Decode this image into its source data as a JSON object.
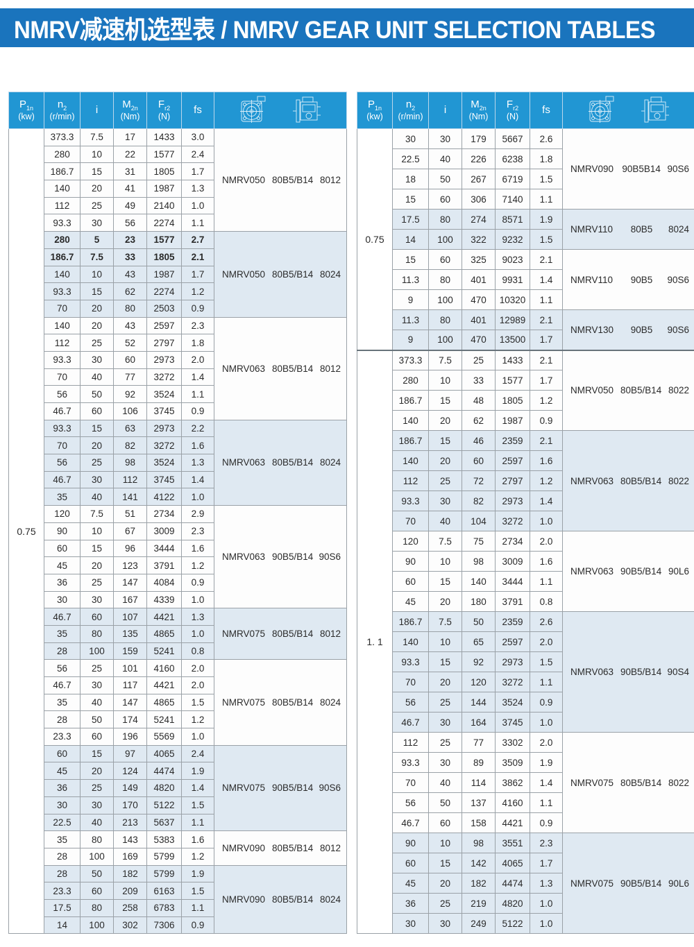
{
  "banner": {
    "title": "NMRV减速机选型表 / NMRV GEAR UNIT SELECTION TABLES"
  },
  "colors": {
    "banner_blue": "#1a74bd",
    "table_header_blue": "#2196d3",
    "shaded_group_bg": "#dfe9f2",
    "row_bg": "#fdfdfd",
    "grid_line": "#9aa1a7"
  },
  "columns": [
    {
      "main": "P",
      "sub": "1n",
      "unit": "(kw)"
    },
    {
      "main": "n",
      "sub": "2",
      "unit": "(r/min)"
    },
    {
      "main": "i",
      "sub": "",
      "unit": ""
    },
    {
      "main": "M",
      "sub": "2n",
      "unit": "(Nm)"
    },
    {
      "main": "F",
      "sub": "r2",
      "unit": "(N)"
    },
    {
      "main": "fs",
      "sub": "",
      "unit": ""
    }
  ],
  "header_icons": [
    "gear-unit-front-icon",
    "gear-unit-side-icon"
  ],
  "tables": [
    {
      "id": "left",
      "sections": [
        {
          "p1n": "0.75",
          "groups": [
            {
              "model": "NMRV050",
              "flange": "80B5/B14",
              "motor": "8012",
              "shaded": false,
              "bold": [],
              "rows": [
                [
                  "373.3",
                  "7.5",
                  "17",
                  "1433",
                  "3.0"
                ],
                [
                  "280",
                  "10",
                  "22",
                  "1577",
                  "2.4"
                ],
                [
                  "186.7",
                  "15",
                  "31",
                  "1805",
                  "1.7"
                ],
                [
                  "140",
                  "20",
                  "41",
                  "1987",
                  "1.3"
                ],
                [
                  "112",
                  "25",
                  "49",
                  "2140",
                  "1.0"
                ],
                [
                  "93.3",
                  "30",
                  "56",
                  "2274",
                  "1.1"
                ]
              ]
            },
            {
              "model": "NMRV050",
              "flange": "80B5/B14",
              "motor": "8024",
              "shaded": true,
              "bold": [
                0,
                1
              ],
              "rows": [
                [
                  "280",
                  "5",
                  "23",
                  "1577",
                  "2.7"
                ],
                [
                  "186.7",
                  "7.5",
                  "33",
                  "1805",
                  "2.1"
                ],
                [
                  "140",
                  "10",
                  "43",
                  "1987",
                  "1.7"
                ],
                [
                  "93.3",
                  "15",
                  "62",
                  "2274",
                  "1.2"
                ],
                [
                  "70",
                  "20",
                  "80",
                  "2503",
                  "0.9"
                ]
              ]
            },
            {
              "model": "NMRV063",
              "flange": "80B5/B14",
              "motor": "8012",
              "shaded": false,
              "bold": [],
              "rows": [
                [
                  "140",
                  "20",
                  "43",
                  "2597",
                  "2.3"
                ],
                [
                  "112",
                  "25",
                  "52",
                  "2797",
                  "1.8"
                ],
                [
                  "93.3",
                  "30",
                  "60",
                  "2973",
                  "2.0"
                ],
                [
                  "70",
                  "40",
                  "77",
                  "3272",
                  "1.4"
                ],
                [
                  "56",
                  "50",
                  "92",
                  "3524",
                  "1.1"
                ],
                [
                  "46.7",
                  "60",
                  "106",
                  "3745",
                  "0.9"
                ]
              ]
            },
            {
              "model": "NMRV063",
              "flange": "80B5/B14",
              "motor": "8024",
              "shaded": true,
              "bold": [],
              "rows": [
                [
                  "93.3",
                  "15",
                  "63",
                  "2973",
                  "2.2"
                ],
                [
                  "70",
                  "20",
                  "82",
                  "3272",
                  "1.6"
                ],
                [
                  "56",
                  "25",
                  "98",
                  "3524",
                  "1.3"
                ],
                [
                  "46.7",
                  "30",
                  "112",
                  "3745",
                  "1.4"
                ],
                [
                  "35",
                  "40",
                  "141",
                  "4122",
                  "1.0"
                ]
              ]
            },
            {
              "model": "NMRV063",
              "flange": "90B5/B14",
              "motor": "90S6",
              "shaded": false,
              "bold": [],
              "rows": [
                [
                  "120",
                  "7.5",
                  "51",
                  "2734",
                  "2.9"
                ],
                [
                  "90",
                  "10",
                  "67",
                  "3009",
                  "2.3"
                ],
                [
                  "60",
                  "15",
                  "96",
                  "3444",
                  "1.6"
                ],
                [
                  "45",
                  "20",
                  "123",
                  "3791",
                  "1.2"
                ],
                [
                  "36",
                  "25",
                  "147",
                  "4084",
                  "0.9"
                ],
                [
                  "30",
                  "30",
                  "167",
                  "4339",
                  "1.0"
                ]
              ]
            },
            {
              "model": "NMRV075",
              "flange": "80B5/B14",
              "motor": "8012",
              "shaded": true,
              "bold": [],
              "rows": [
                [
                  "46.7",
                  "60",
                  "107",
                  "4421",
                  "1.3"
                ],
                [
                  "35",
                  "80",
                  "135",
                  "4865",
                  "1.0"
                ],
                [
                  "28",
                  "100",
                  "159",
                  "5241",
                  "0.8"
                ]
              ]
            },
            {
              "model": "NMRV075",
              "flange": "80B5/B14",
              "motor": "8024",
              "shaded": false,
              "bold": [],
              "rows": [
                [
                  "56",
                  "25",
                  "101",
                  "4160",
                  "2.0"
                ],
                [
                  "46.7",
                  "30",
                  "117",
                  "4421",
                  "2.0"
                ],
                [
                  "35",
                  "40",
                  "147",
                  "4865",
                  "1.5"
                ],
                [
                  "28",
                  "50",
                  "174",
                  "5241",
                  "1.2"
                ],
                [
                  "23.3",
                  "60",
                  "196",
                  "5569",
                  "1.0"
                ]
              ]
            },
            {
              "model": "NMRV075",
              "flange": "90B5/B14",
              "motor": "90S6",
              "shaded": true,
              "bold": [],
              "rows": [
                [
                  "60",
                  "15",
                  "97",
                  "4065",
                  "2.4"
                ],
                [
                  "45",
                  "20",
                  "124",
                  "4474",
                  "1.9"
                ],
                [
                  "36",
                  "25",
                  "149",
                  "4820",
                  "1.4"
                ],
                [
                  "30",
                  "30",
                  "170",
                  "5122",
                  "1.5"
                ],
                [
                  "22.5",
                  "40",
                  "213",
                  "5637",
                  "1.1"
                ]
              ]
            },
            {
              "model": "NMRV090",
              "flange": "80B5/B14",
              "motor": "8012",
              "shaded": false,
              "bold": [],
              "rows": [
                [
                  "35",
                  "80",
                  "143",
                  "5383",
                  "1.6"
                ],
                [
                  "28",
                  "100",
                  "169",
                  "5799",
                  "1.2"
                ]
              ]
            },
            {
              "model": "NMRV090",
              "flange": "80B5/B14",
              "motor": "8024",
              "shaded": true,
              "bold": [],
              "rows": [
                [
                  "28",
                  "50",
                  "182",
                  "5799",
                  "1.9"
                ],
                [
                  "23.3",
                  "60",
                  "209",
                  "6163",
                  "1.5"
                ],
                [
                  "17.5",
                  "80",
                  "258",
                  "6783",
                  "1.1"
                ],
                [
                  "14",
                  "100",
                  "302",
                  "7306",
                  "0.9"
                ]
              ]
            }
          ]
        }
      ]
    },
    {
      "id": "right",
      "sections": [
        {
          "p1n": "0.75",
          "groups": [
            {
              "model": "NMRV090",
              "flange": "90B5B14",
              "motor": "90S6",
              "shaded": false,
              "bold": [],
              "rows": [
                [
                  "30",
                  "30",
                  "179",
                  "5667",
                  "2.6"
                ],
                [
                  "22.5",
                  "40",
                  "226",
                  "6238",
                  "1.8"
                ],
                [
                  "18",
                  "50",
                  "267",
                  "6719",
                  "1.5"
                ],
                [
                  "15",
                  "60",
                  "306",
                  "7140",
                  "1.1"
                ]
              ]
            },
            {
              "model": "NMRV110",
              "flange": "80B5",
              "motor": "8024",
              "shaded": true,
              "bold": [],
              "rows": [
                [
                  "17.5",
                  "80",
                  "274",
                  "8571",
                  "1.9"
                ],
                [
                  "14",
                  "100",
                  "322",
                  "9232",
                  "1.5"
                ]
              ]
            },
            {
              "model": "NMRV110",
              "flange": "90B5",
              "motor": "90S6",
              "shaded": false,
              "bold": [],
              "rows": [
                [
                  "15",
                  "60",
                  "325",
                  "9023",
                  "2.1"
                ],
                [
                  "11.3",
                  "80",
                  "401",
                  "9931",
                  "1.4"
                ],
                [
                  "9",
                  "100",
                  "470",
                  "10320",
                  "1.1"
                ]
              ]
            },
            {
              "model": "NMRV130",
              "flange": "90B5",
              "motor": "90S6",
              "shaded": true,
              "bold": [],
              "rows": [
                [
                  "11.3",
                  "80",
                  "401",
                  "12989",
                  "2.1"
                ],
                [
                  "9",
                  "100",
                  "470",
                  "13500",
                  "1.7"
                ]
              ]
            }
          ]
        },
        {
          "p1n": "1. 1",
          "groups": [
            {
              "model": "NMRV050",
              "flange": "80B5/B14",
              "motor": "8022",
              "shaded": false,
              "bold": [],
              "rows": [
                [
                  "373.3",
                  "7.5",
                  "25",
                  "1433",
                  "2.1"
                ],
                [
                  "280",
                  "10",
                  "33",
                  "1577",
                  "1.7"
                ],
                [
                  "186.7",
                  "15",
                  "48",
                  "1805",
                  "1.2"
                ],
                [
                  "140",
                  "20",
                  "62",
                  "1987",
                  "0.9"
                ]
              ]
            },
            {
              "model": "NMRV063",
              "flange": "80B5/B14",
              "motor": "8022",
              "shaded": true,
              "bold": [],
              "rows": [
                [
                  "186.7",
                  "15",
                  "46",
                  "2359",
                  "2.1"
                ],
                [
                  "140",
                  "20",
                  "60",
                  "2597",
                  "1.6"
                ],
                [
                  "112",
                  "25",
                  "72",
                  "2797",
                  "1.2"
                ],
                [
                  "93.3",
                  "30",
                  "82",
                  "2973",
                  "1.4"
                ],
                [
                  "70",
                  "40",
                  "104",
                  "3272",
                  "1.0"
                ]
              ]
            },
            {
              "model": "NMRV063",
              "flange": "90B5/B14",
              "motor": "90L6",
              "shaded": false,
              "bold": [],
              "rows": [
                [
                  "120",
                  "7.5",
                  "75",
                  "2734",
                  "2.0"
                ],
                [
                  "90",
                  "10",
                  "98",
                  "3009",
                  "1.6"
                ],
                [
                  "60",
                  "15",
                  "140",
                  "3444",
                  "1.1"
                ],
                [
                  "45",
                  "20",
                  "180",
                  "3791",
                  "0.8"
                ]
              ]
            },
            {
              "model": "NMRV063",
              "flange": "90B5/B14",
              "motor": "90S4",
              "shaded": true,
              "bold": [],
              "rows": [
                [
                  "186.7",
                  "7.5",
                  "50",
                  "2359",
                  "2.6"
                ],
                [
                  "140",
                  "10",
                  "65",
                  "2597",
                  "2.0"
                ],
                [
                  "93.3",
                  "15",
                  "92",
                  "2973",
                  "1.5"
                ],
                [
                  "70",
                  "20",
                  "120",
                  "3272",
                  "1.1"
                ],
                [
                  "56",
                  "25",
                  "144",
                  "3524",
                  "0.9"
                ],
                [
                  "46.7",
                  "30",
                  "164",
                  "3745",
                  "1.0"
                ]
              ]
            },
            {
              "model": "NMRV075",
              "flange": "80B5/B14",
              "motor": "8022",
              "shaded": false,
              "bold": [],
              "rows": [
                [
                  "112",
                  "25",
                  "77",
                  "3302",
                  "2.0"
                ],
                [
                  "93.3",
                  "30",
                  "89",
                  "3509",
                  "1.9"
                ],
                [
                  "70",
                  "40",
                  "114",
                  "3862",
                  "1.4"
                ],
                [
                  "56",
                  "50",
                  "137",
                  "4160",
                  "1.1"
                ],
                [
                  "46.7",
                  "60",
                  "158",
                  "4421",
                  "0.9"
                ]
              ]
            },
            {
              "model": "NMRV075",
              "flange": "90B5/B14",
              "motor": "90L6",
              "shaded": true,
              "bold": [],
              "rows": [
                [
                  "90",
                  "10",
                  "98",
                  "3551",
                  "2.3"
                ],
                [
                  "60",
                  "15",
                  "142",
                  "4065",
                  "1.7"
                ],
                [
                  "45",
                  "20",
                  "182",
                  "4474",
                  "1.3"
                ],
                [
                  "36",
                  "25",
                  "219",
                  "4820",
                  "1.0"
                ],
                [
                  "30",
                  "30",
                  "249",
                  "5122",
                  "1.0"
                ]
              ]
            }
          ]
        }
      ]
    }
  ]
}
